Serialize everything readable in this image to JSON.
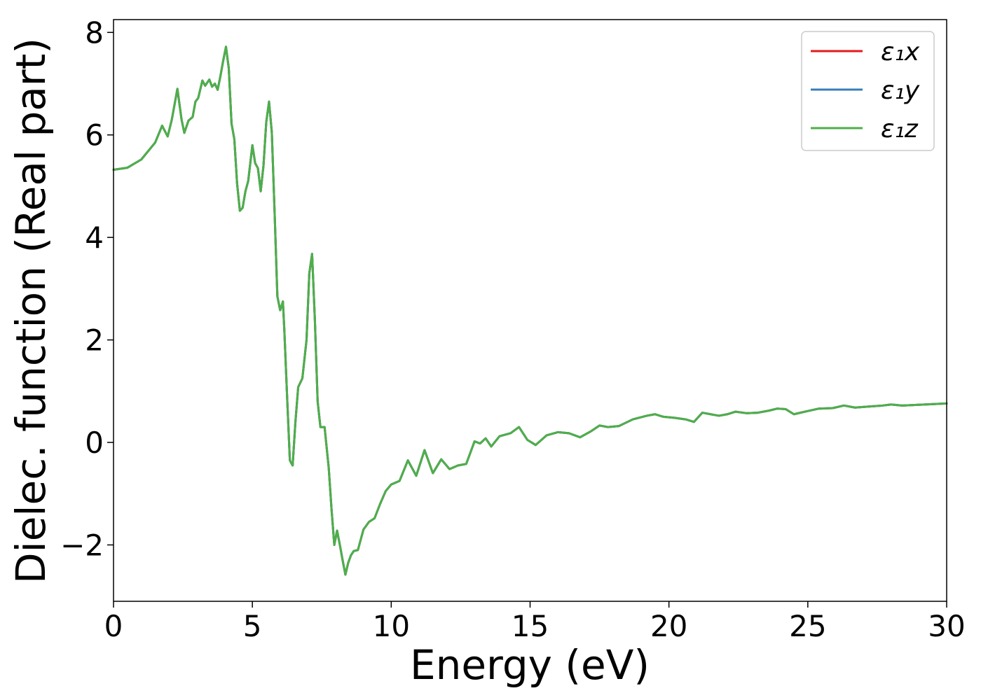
{
  "chart_data": {
    "type": "line",
    "title": "",
    "xlabel": "Energy (eV)",
    "ylabel": "Dielec. function (Real part)",
    "xlim": [
      0,
      30
    ],
    "ylim": [
      -3.1,
      8.25
    ],
    "xticks": [
      0,
      5,
      10,
      15,
      20,
      25,
      30
    ],
    "xtick_labels": [
      "0",
      "5",
      "10",
      "15",
      "20",
      "25",
      "30"
    ],
    "yticks": [
      -2,
      0,
      2,
      4,
      6,
      8
    ],
    "ytick_labels": [
      "−2",
      "0",
      "2",
      "4",
      "6",
      "8"
    ],
    "grid": false,
    "legend": {
      "placement": "top-right"
    },
    "x": [
      0,
      0.5,
      1.0,
      1.5,
      1.75,
      1.95,
      2.1,
      2.3,
      2.45,
      2.55,
      2.7,
      2.85,
      2.95,
      3.05,
      3.2,
      3.3,
      3.45,
      3.55,
      3.65,
      3.75,
      3.85,
      3.95,
      4.05,
      4.15,
      4.25,
      4.35,
      4.45,
      4.55,
      4.65,
      4.75,
      4.85,
      5.0,
      5.1,
      5.2,
      5.3,
      5.4,
      5.5,
      5.6,
      5.7,
      5.8,
      5.9,
      6.0,
      6.1,
      6.15,
      6.25,
      6.35,
      6.45,
      6.55,
      6.65,
      6.8,
      6.95,
      7.05,
      7.15,
      7.25,
      7.35,
      7.45,
      7.6,
      7.75,
      7.85,
      7.95,
      8.05,
      8.15,
      8.25,
      8.35,
      8.45,
      8.55,
      8.65,
      8.8,
      9.0,
      9.2,
      9.4,
      9.6,
      9.8,
      10.0,
      10.3,
      10.6,
      10.9,
      11.2,
      11.5,
      11.8,
      12.1,
      12.4,
      12.7,
      13.0,
      13.2,
      13.4,
      13.6,
      13.9,
      14.3,
      14.6,
      14.9,
      15.2,
      15.6,
      16.0,
      16.4,
      16.8,
      17.2,
      17.5,
      17.8,
      18.2,
      18.7,
      19.2,
      19.5,
      19.8,
      20.2,
      20.6,
      20.9,
      21.2,
      21.5,
      21.8,
      22.1,
      22.4,
      22.8,
      23.2,
      23.6,
      23.9,
      24.2,
      24.5,
      24.9,
      25.4,
      25.9,
      26.3,
      26.7,
      27.2,
      27.7,
      28.0,
      28.4,
      28.8,
      29.2,
      29.6,
      30.0
    ],
    "series": [
      {
        "name": "ε₁x",
        "color": "#e41a1c",
        "values": [
          5.32,
          5.36,
          5.52,
          5.85,
          6.18,
          5.97,
          6.3,
          6.9,
          6.3,
          6.04,
          6.28,
          6.35,
          6.65,
          6.72,
          7.06,
          6.96,
          7.08,
          6.94,
          7.0,
          6.88,
          7.15,
          7.45,
          7.72,
          7.3,
          6.22,
          5.92,
          5.05,
          4.52,
          4.58,
          4.9,
          5.1,
          5.8,
          5.45,
          5.35,
          4.9,
          5.4,
          6.25,
          6.65,
          6.05,
          4.5,
          2.85,
          2.58,
          2.75,
          2.2,
          0.9,
          -0.35,
          -0.45,
          0.4,
          1.08,
          1.25,
          2.0,
          3.3,
          3.68,
          2.4,
          0.8,
          0.3,
          0.3,
          -0.5,
          -1.3,
          -2.0,
          -1.72,
          -2.0,
          -2.3,
          -2.58,
          -2.35,
          -2.2,
          -2.12,
          -2.1,
          -1.7,
          -1.55,
          -1.48,
          -1.2,
          -0.95,
          -0.82,
          -0.75,
          -0.35,
          -0.65,
          -0.15,
          -0.6,
          -0.33,
          -0.52,
          -0.45,
          -0.42,
          0.02,
          -0.02,
          0.08,
          -0.08,
          0.12,
          0.18,
          0.3,
          0.05,
          -0.05,
          0.14,
          0.2,
          0.18,
          0.1,
          0.22,
          0.33,
          0.3,
          0.32,
          0.45,
          0.52,
          0.55,
          0.5,
          0.48,
          0.45,
          0.4,
          0.58,
          0.55,
          0.52,
          0.55,
          0.6,
          0.57,
          0.58,
          0.62,
          0.66,
          0.65,
          0.55,
          0.6,
          0.66,
          0.67,
          0.72,
          0.68,
          0.7,
          0.72,
          0.74,
          0.72,
          0.73,
          0.74,
          0.75,
          0.76
        ]
      },
      {
        "name": "ε₁y",
        "color": "#377eb8",
        "values": [
          5.32,
          5.36,
          5.52,
          5.85,
          6.18,
          5.97,
          6.3,
          6.9,
          6.3,
          6.04,
          6.28,
          6.35,
          6.65,
          6.72,
          7.06,
          6.96,
          7.08,
          6.94,
          7.0,
          6.88,
          7.15,
          7.45,
          7.72,
          7.3,
          6.22,
          5.92,
          5.05,
          4.52,
          4.58,
          4.9,
          5.1,
          5.8,
          5.45,
          5.35,
          4.9,
          5.4,
          6.25,
          6.65,
          6.05,
          4.5,
          2.85,
          2.58,
          2.75,
          2.2,
          0.9,
          -0.35,
          -0.45,
          0.4,
          1.08,
          1.25,
          2.0,
          3.3,
          3.68,
          2.4,
          0.8,
          0.3,
          0.3,
          -0.5,
          -1.3,
          -2.0,
          -1.72,
          -2.0,
          -2.3,
          -2.58,
          -2.35,
          -2.2,
          -2.12,
          -2.1,
          -1.7,
          -1.55,
          -1.48,
          -1.2,
          -0.95,
          -0.82,
          -0.75,
          -0.35,
          -0.65,
          -0.15,
          -0.6,
          -0.33,
          -0.52,
          -0.45,
          -0.42,
          0.02,
          -0.02,
          0.08,
          -0.08,
          0.12,
          0.18,
          0.3,
          0.05,
          -0.05,
          0.14,
          0.2,
          0.18,
          0.1,
          0.22,
          0.33,
          0.3,
          0.32,
          0.45,
          0.52,
          0.55,
          0.5,
          0.48,
          0.45,
          0.4,
          0.58,
          0.55,
          0.52,
          0.55,
          0.6,
          0.57,
          0.58,
          0.62,
          0.66,
          0.65,
          0.55,
          0.6,
          0.66,
          0.67,
          0.72,
          0.68,
          0.7,
          0.72,
          0.74,
          0.72,
          0.73,
          0.74,
          0.75,
          0.76
        ]
      },
      {
        "name": "ε₁z",
        "color": "#4daf4a",
        "values": [
          5.32,
          5.36,
          5.52,
          5.85,
          6.18,
          5.97,
          6.3,
          6.9,
          6.3,
          6.04,
          6.28,
          6.35,
          6.65,
          6.72,
          7.06,
          6.96,
          7.08,
          6.94,
          7.0,
          6.88,
          7.15,
          7.45,
          7.72,
          7.3,
          6.22,
          5.92,
          5.05,
          4.52,
          4.58,
          4.9,
          5.1,
          5.8,
          5.45,
          5.35,
          4.9,
          5.4,
          6.25,
          6.65,
          6.05,
          4.5,
          2.85,
          2.58,
          2.75,
          2.2,
          0.9,
          -0.35,
          -0.45,
          0.4,
          1.08,
          1.25,
          2.0,
          3.3,
          3.68,
          2.4,
          0.8,
          0.3,
          0.3,
          -0.5,
          -1.3,
          -2.0,
          -1.72,
          -2.0,
          -2.3,
          -2.58,
          -2.35,
          -2.2,
          -2.12,
          -2.1,
          -1.7,
          -1.55,
          -1.48,
          -1.2,
          -0.95,
          -0.82,
          -0.75,
          -0.35,
          -0.65,
          -0.15,
          -0.6,
          -0.33,
          -0.52,
          -0.45,
          -0.42,
          0.02,
          -0.02,
          0.08,
          -0.08,
          0.12,
          0.18,
          0.3,
          0.05,
          -0.05,
          0.14,
          0.2,
          0.18,
          0.1,
          0.22,
          0.33,
          0.3,
          0.32,
          0.45,
          0.52,
          0.55,
          0.5,
          0.48,
          0.45,
          0.4,
          0.58,
          0.55,
          0.52,
          0.55,
          0.6,
          0.57,
          0.58,
          0.62,
          0.66,
          0.65,
          0.55,
          0.6,
          0.66,
          0.67,
          0.72,
          0.68,
          0.7,
          0.72,
          0.74,
          0.72,
          0.73,
          0.74,
          0.75,
          0.76
        ]
      }
    ]
  }
}
